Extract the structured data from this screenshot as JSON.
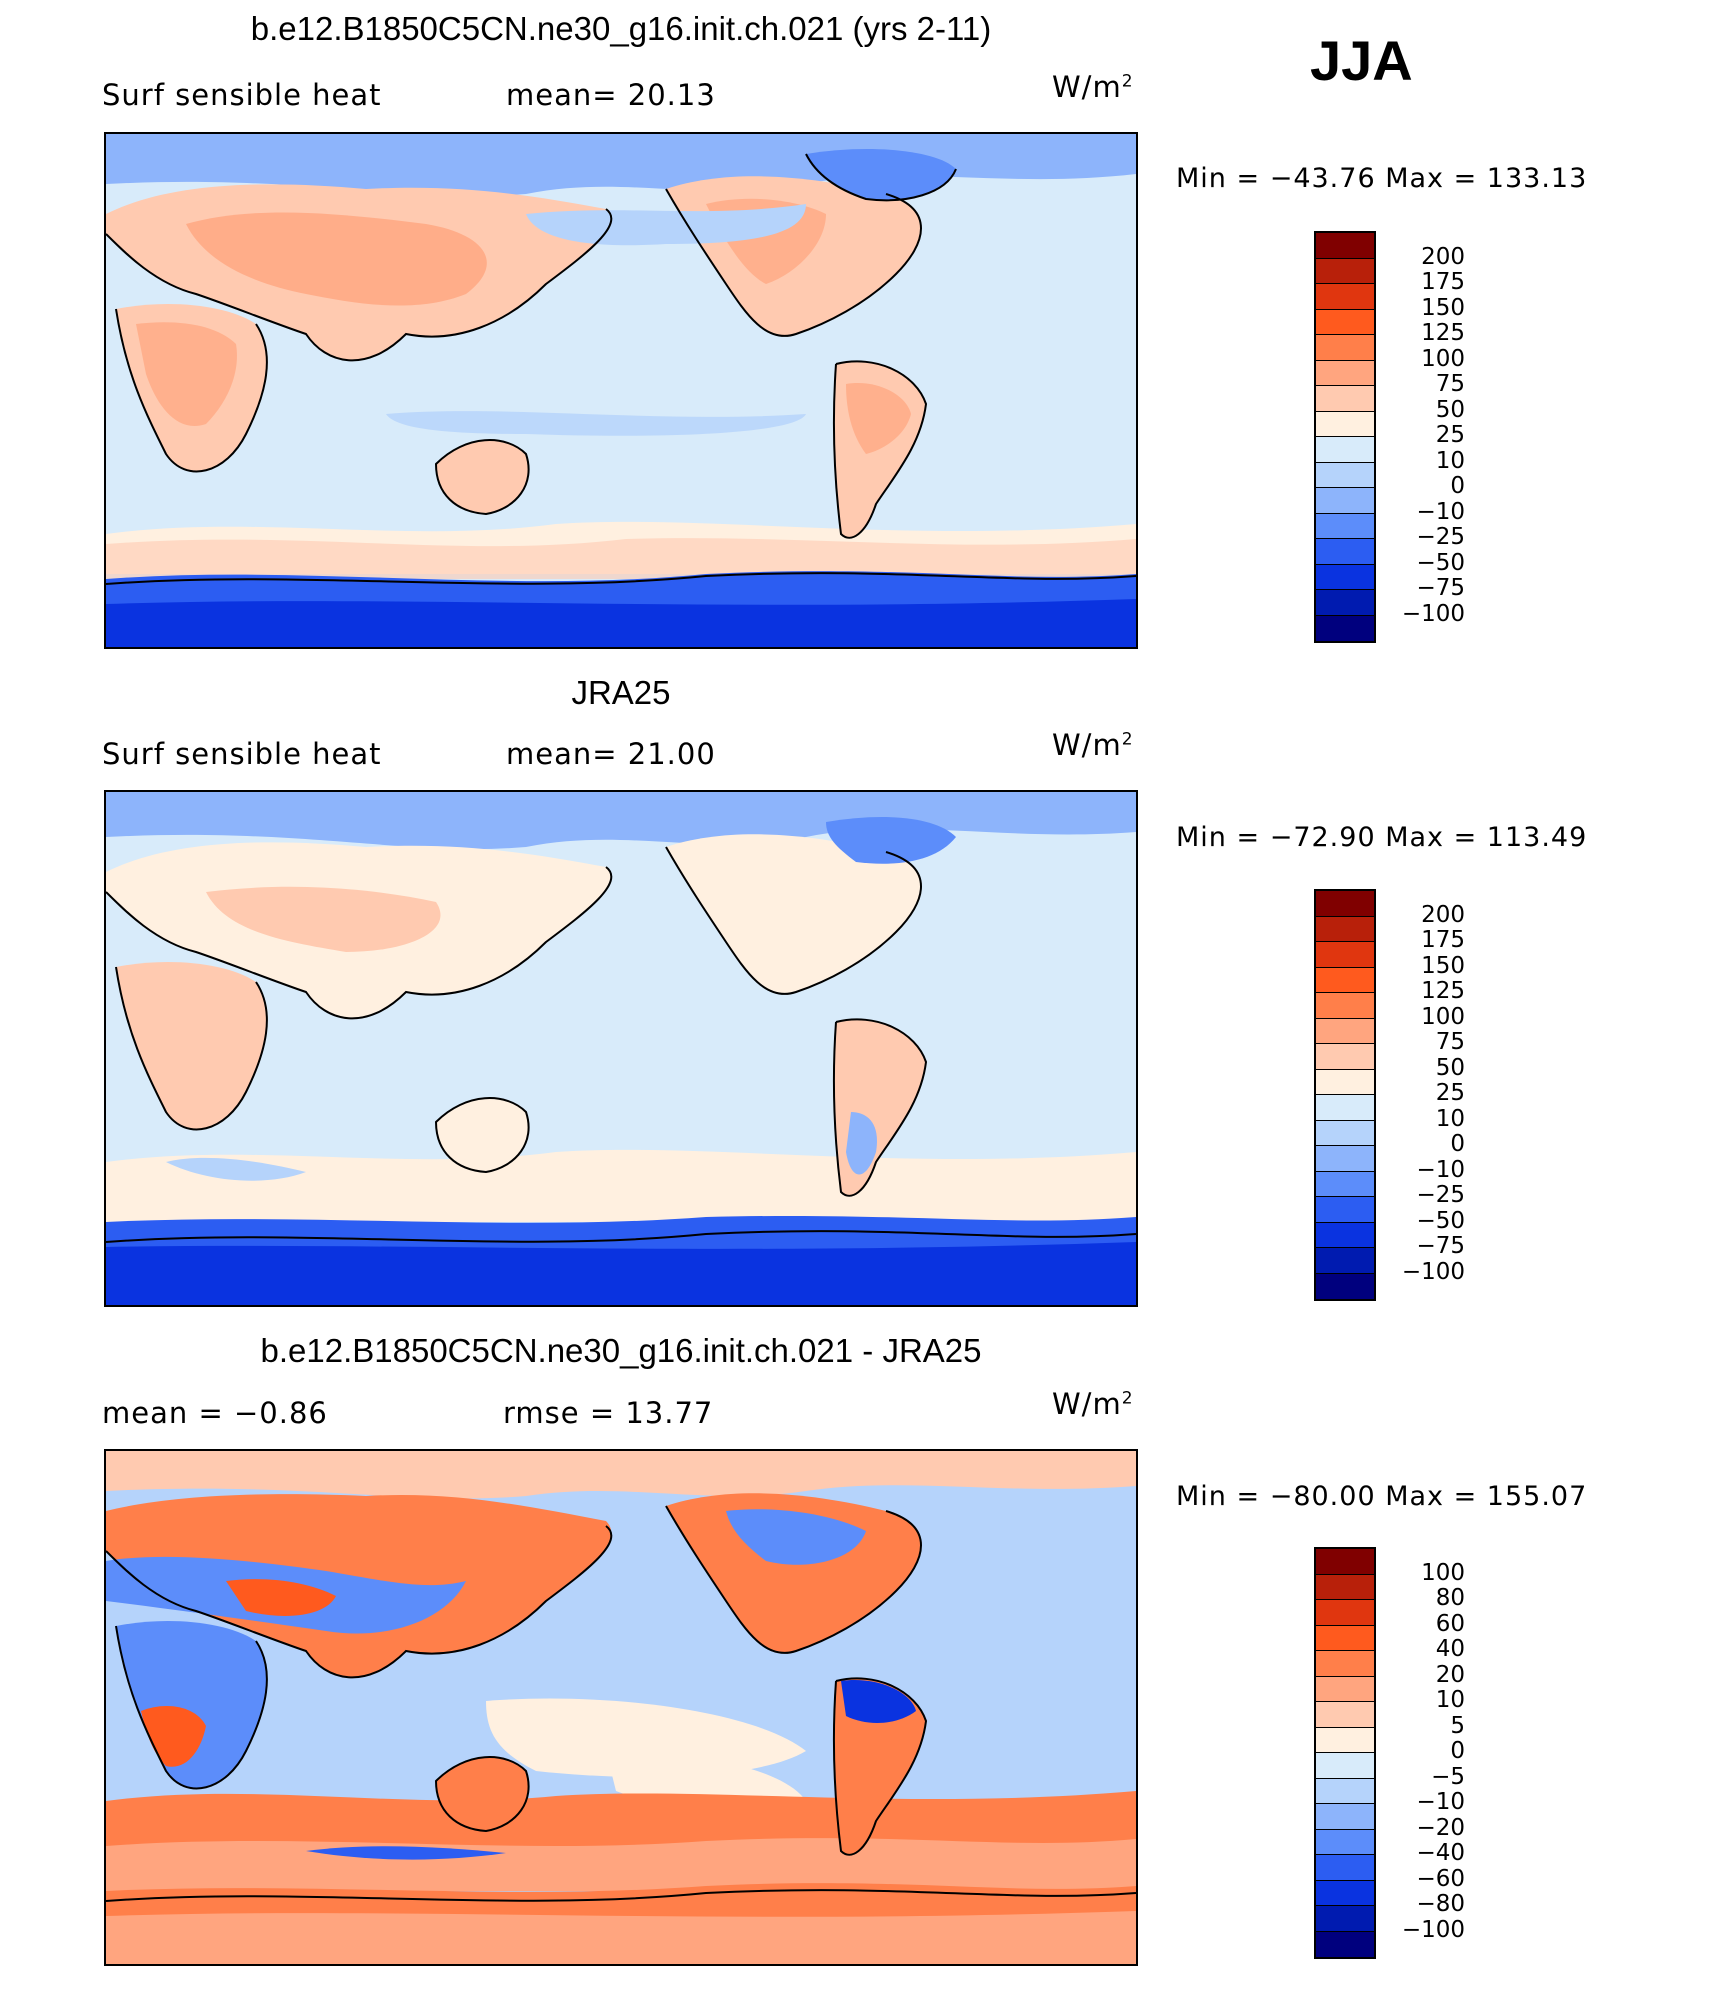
{
  "season": "JJA",
  "units_label": "W/m",
  "units_sup": "2",
  "panels": [
    {
      "title": "b.e12.B1850C5CN.ne30_g16.init.ch.021 (yrs 2-11)",
      "left_label": "Surf  sensible  heat",
      "mid_label": "mean=   20.13",
      "minmax": "Min  =  −43.76  Max  =  133.13",
      "levels": [
        "200",
        "175",
        "150",
        "125",
        "100",
        "75",
        "50",
        "25",
        "10",
        "0",
        "−10",
        "−25",
        "−50",
        "−75",
        "−100"
      ]
    },
    {
      "title": "JRA25",
      "left_label": "Surf  sensible  heat",
      "mid_label": "mean=   21.00",
      "minmax": "Min  =  −72.90  Max  =  113.49",
      "levels": [
        "200",
        "175",
        "150",
        "125",
        "100",
        "75",
        "50",
        "25",
        "10",
        "0",
        "−10",
        "−25",
        "−50",
        "−75",
        "−100"
      ]
    },
    {
      "title": "b.e12.B1850C5CN.ne30_g16.init.ch.021 - JRA25",
      "left_label": "mean  =    −0.86",
      "mid_label": "rmse  =    13.77",
      "minmax": "Min  =  −80.00  Max  =  155.07",
      "levels": [
        "100",
        "80",
        "60",
        "40",
        "20",
        "10",
        "5",
        "0",
        "−5",
        "−10",
        "−20",
        "−40",
        "−60",
        "−80",
        "−100"
      ]
    }
  ],
  "colorbar_colors": [
    "#800000",
    "#b8200a",
    "#e0360f",
    "#ff5a1e",
    "#ff7f4a",
    "#ffa57f",
    "#ffcab0",
    "#fff0e0",
    "#d8ebfa",
    "#b5d3fb",
    "#8db4fb",
    "#5c8dfa",
    "#2c5df2",
    "#0a33e0",
    "#001bb0",
    "#00007e"
  ],
  "chart_data": [
    {
      "type": "heatmap",
      "title": "b.e12.B1850C5CN.ne30_g16.init.ch.021 (yrs 2-11)",
      "variable": "Surf sensible heat",
      "units": "W/m2",
      "mean": 20.13,
      "min": -43.76,
      "max": 133.13,
      "contour_levels": [
        -100,
        -75,
        -50,
        -25,
        -10,
        0,
        10,
        25,
        50,
        75,
        100,
        125,
        150,
        175,
        200
      ]
    },
    {
      "type": "heatmap",
      "title": "JRA25",
      "variable": "Surf sensible heat",
      "units": "W/m2",
      "mean": 21.0,
      "min": -72.9,
      "max": 113.49,
      "contour_levels": [
        -100,
        -75,
        -50,
        -25,
        -10,
        0,
        10,
        25,
        50,
        75,
        100,
        125,
        150,
        175,
        200
      ]
    },
    {
      "type": "heatmap",
      "title": "b.e12.B1850C5CN.ne30_g16.init.ch.021 - JRA25",
      "units": "W/m2",
      "mean": -0.86,
      "rmse": 13.77,
      "min": -80.0,
      "max": 155.07,
      "contour_levels": [
        -100,
        -80,
        -60,
        -40,
        -20,
        -10,
        -5,
        0,
        5,
        10,
        20,
        40,
        60,
        80,
        100
      ]
    }
  ]
}
